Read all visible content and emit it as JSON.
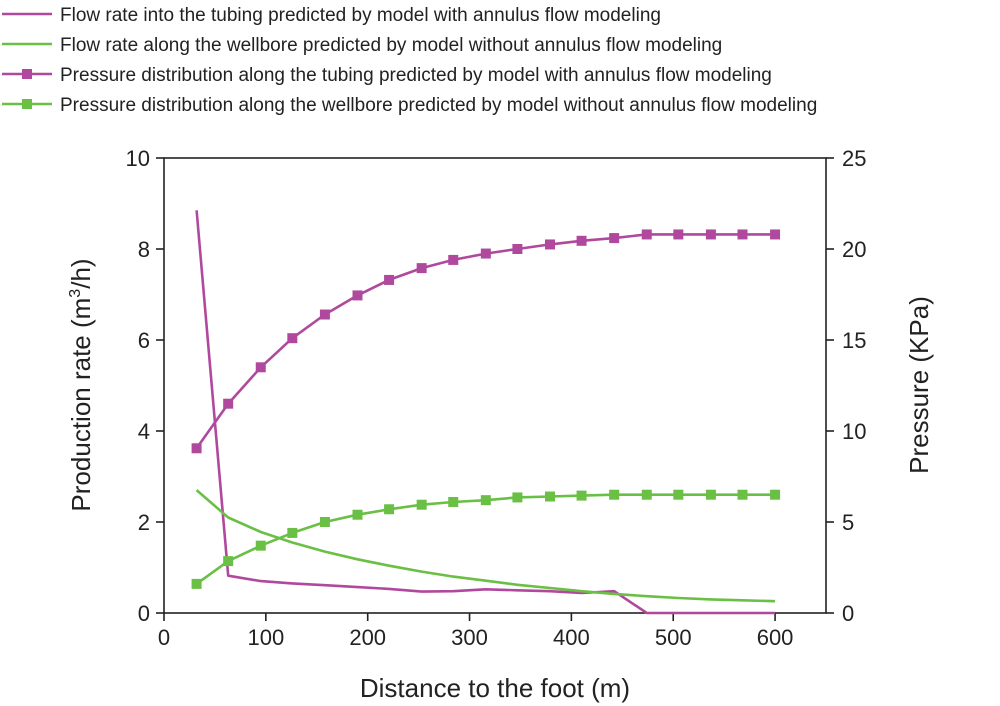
{
  "chart_data": {
    "type": "line",
    "xlabel": "Distance to the foot (m)",
    "ylabel_left_main": "Production rate (m",
    "ylabel_left_sup": "3",
    "ylabel_left_tail": "/h)",
    "ylabel_right": "Pressure (KPa)",
    "xlim": [
      0,
      650
    ],
    "ylim_left": [
      0,
      10
    ],
    "ylim_right": [
      0,
      25
    ],
    "xticks": [
      "0",
      "100",
      "200",
      "300",
      "400",
      "500",
      "600"
    ],
    "yticks_left": [
      "0",
      "2",
      "4",
      "6",
      "8",
      "10"
    ],
    "yticks_right": [
      "0",
      "5",
      "10",
      "15",
      "20",
      "25"
    ],
    "grid": false,
    "legend_position": "top",
    "series": [
      {
        "name": "Flow rate into the tubing predicted by model with annulus flow modeling",
        "axis": "left",
        "color": "#b0499e",
        "marker": "none",
        "x": [
          32,
          63,
          95,
          126,
          158,
          190,
          221,
          253,
          284,
          316,
          347,
          379,
          410,
          442,
          474,
          505,
          537,
          568,
          600
        ],
        "y": [
          8.85,
          0.82,
          0.7,
          0.65,
          0.61,
          0.57,
          0.53,
          0.47,
          0.48,
          0.52,
          0.5,
          0.48,
          0.44,
          0.48,
          0.0,
          0.0,
          0.0,
          0.0,
          0.0
        ]
      },
      {
        "name": "Flow rate along the wellbore predicted by model without annulus flow modeling",
        "axis": "left",
        "color": "#6abf45",
        "marker": "none",
        "x": [
          32,
          63,
          95,
          126,
          158,
          190,
          221,
          253,
          284,
          316,
          347,
          379,
          410,
          442,
          474,
          505,
          537,
          568,
          600
        ],
        "y": [
          2.7,
          2.1,
          1.78,
          1.55,
          1.35,
          1.18,
          1.04,
          0.91,
          0.8,
          0.71,
          0.62,
          0.55,
          0.48,
          0.42,
          0.37,
          0.33,
          0.3,
          0.28,
          0.26
        ]
      },
      {
        "name": "Pressure distribution along the tubing predicted by model with annulus flow modeling",
        "axis": "right",
        "color": "#b0499e",
        "marker": "square",
        "x": [
          32,
          63,
          95,
          126,
          158,
          190,
          221,
          253,
          284,
          316,
          347,
          379,
          410,
          442,
          474,
          505,
          537,
          568,
          600
        ],
        "y": [
          9.05,
          11.5,
          13.5,
          15.1,
          16.4,
          17.45,
          18.3,
          18.95,
          19.4,
          19.75,
          20.0,
          20.25,
          20.45,
          20.6,
          20.8,
          20.8,
          20.8,
          20.8,
          20.8
        ]
      },
      {
        "name": "Pressure distribution along the wellbore predicted by model without annulus flow modeling",
        "axis": "right",
        "color": "#6abf45",
        "marker": "square",
        "x": [
          32,
          63,
          95,
          126,
          158,
          190,
          221,
          253,
          284,
          316,
          347,
          379,
          410,
          442,
          474,
          505,
          537,
          568,
          600
        ],
        "y": [
          1.6,
          2.85,
          3.7,
          4.4,
          5.0,
          5.4,
          5.7,
          5.95,
          6.1,
          6.2,
          6.35,
          6.4,
          6.45,
          6.5,
          6.5,
          6.5,
          6.5,
          6.5,
          6.5
        ]
      }
    ]
  }
}
